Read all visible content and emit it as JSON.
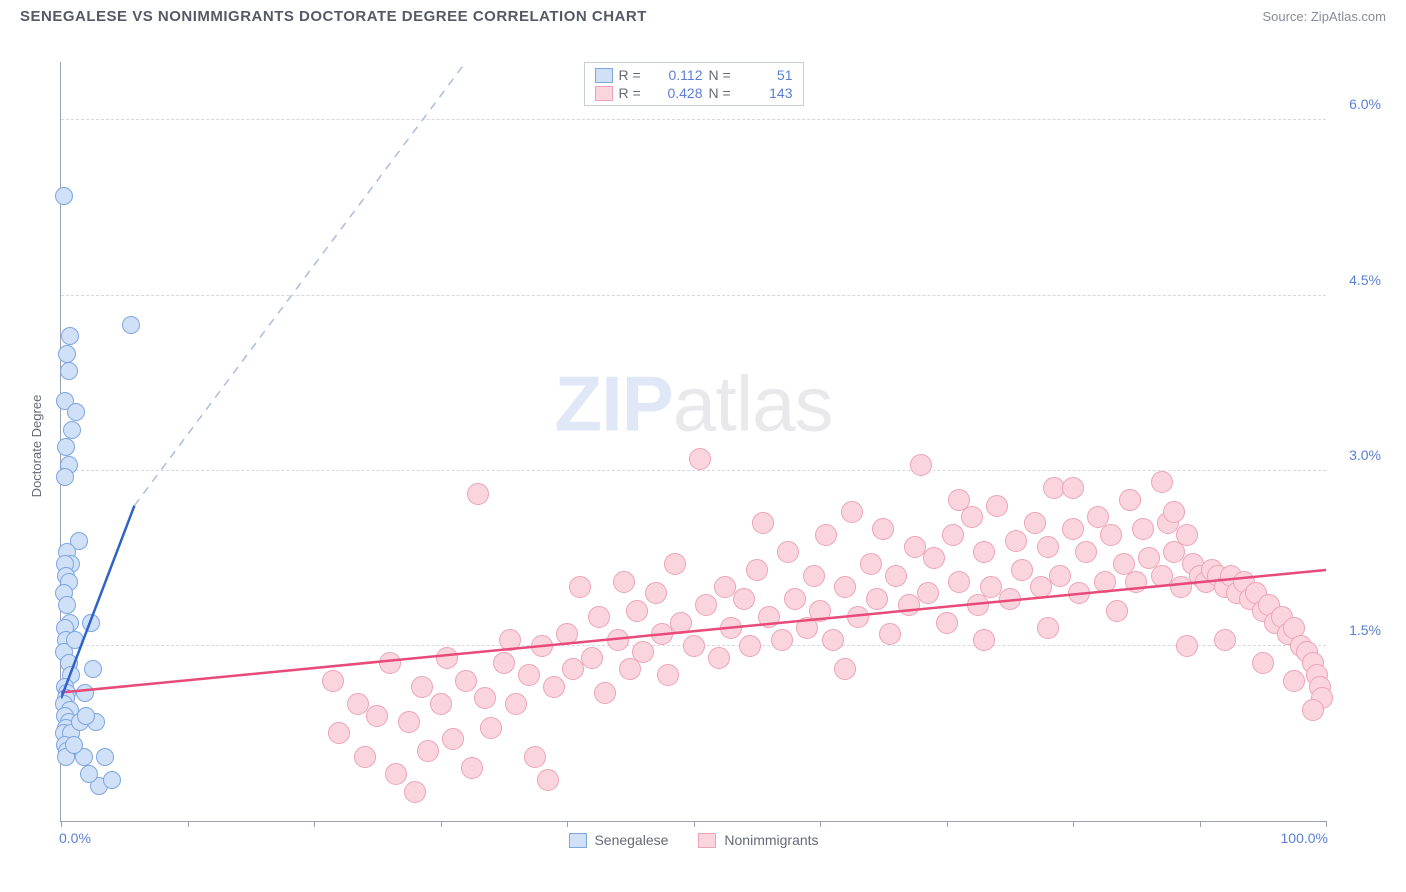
{
  "title": "SENEGALESE VS NONIMMIGRANTS DOCTORATE DEGREE CORRELATION CHART",
  "source_label": "Source: ",
  "source_name": "ZipAtlas.com",
  "watermark_zip": "ZIP",
  "watermark_rest": "atlas",
  "y_axis_title": "Doctorate Degree",
  "chart": {
    "xlim": [
      0,
      100
    ],
    "ylim": [
      0,
      6.5
    ],
    "y_ticks": [
      1.5,
      3.0,
      4.5,
      6.0
    ],
    "y_tick_labels": [
      "1.5%",
      "3.0%",
      "4.5%",
      "6.0%"
    ],
    "x_tick_positions": [
      0,
      10,
      20,
      30,
      40,
      50,
      60,
      70,
      80,
      90,
      100
    ],
    "x_left_label": "0.0%",
    "x_right_label": "100.0%",
    "background_color": "#ffffff",
    "grid_color": "#d5d8e0",
    "axis_color": "#9aa0b0",
    "series": {
      "senegalese": {
        "label": "Senegalese",
        "marker_fill": "#cfe0f7",
        "marker_stroke": "#7da6e3",
        "marker_radius": 9,
        "line_color": "#2f63c9",
        "dash_color": "#a9bde0",
        "r_value": "0.112",
        "n_value": "51",
        "trend_solid": {
          "x1": 0.0,
          "y1": 1.05,
          "x2": 5.8,
          "y2": 2.7
        },
        "trend_dash": {
          "x1": 5.8,
          "y1": 2.7,
          "x2": 32.0,
          "y2": 6.5
        },
        "points": [
          [
            0.2,
            5.35
          ],
          [
            0.5,
            4.0
          ],
          [
            0.6,
            3.85
          ],
          [
            0.7,
            4.15
          ],
          [
            0.3,
            3.6
          ],
          [
            1.2,
            3.5
          ],
          [
            0.9,
            3.35
          ],
          [
            0.4,
            3.2
          ],
          [
            0.6,
            3.05
          ],
          [
            0.3,
            2.95
          ],
          [
            3.0,
            0.3
          ],
          [
            5.5,
            4.25
          ],
          [
            1.4,
            2.4
          ],
          [
            0.5,
            2.3
          ],
          [
            0.8,
            2.2
          ],
          [
            0.3,
            2.2
          ],
          [
            0.4,
            2.1
          ],
          [
            0.6,
            2.05
          ],
          [
            0.2,
            1.95
          ],
          [
            0.5,
            1.85
          ],
          [
            0.7,
            1.7
          ],
          [
            0.3,
            1.65
          ],
          [
            0.4,
            1.55
          ],
          [
            0.2,
            1.45
          ],
          [
            1.1,
            1.55
          ],
          [
            2.4,
            1.7
          ],
          [
            0.6,
            1.35
          ],
          [
            0.8,
            1.25
          ],
          [
            0.3,
            1.15
          ],
          [
            0.5,
            1.1
          ],
          [
            0.4,
            1.05
          ],
          [
            0.2,
            1.0
          ],
          [
            0.7,
            0.95
          ],
          [
            0.3,
            0.9
          ],
          [
            0.6,
            0.85
          ],
          [
            0.4,
            0.8
          ],
          [
            0.2,
            0.75
          ],
          [
            0.8,
            0.75
          ],
          [
            1.5,
            0.85
          ],
          [
            2.8,
            0.85
          ],
          [
            0.3,
            0.65
          ],
          [
            0.5,
            0.6
          ],
          [
            1.9,
            1.1
          ],
          [
            0.4,
            0.55
          ],
          [
            3.5,
            0.55
          ],
          [
            2.2,
            0.4
          ],
          [
            1.8,
            0.55
          ],
          [
            2.5,
            1.3
          ],
          [
            1.0,
            0.65
          ],
          [
            4.0,
            0.35
          ],
          [
            2.0,
            0.9
          ]
        ]
      },
      "nonimmigrants": {
        "label": "Nonimmigrants",
        "marker_fill": "#fbd5de",
        "marker_stroke": "#eda3b6",
        "marker_radius": 11,
        "line_color": "#e84a7a",
        "r_value": "0.428",
        "n_value": "143",
        "trend_solid": {
          "x1": 0.0,
          "y1": 1.1,
          "x2": 100.0,
          "y2": 2.15
        },
        "points": [
          [
            21.5,
            1.2
          ],
          [
            22.0,
            0.75
          ],
          [
            23.5,
            1.0
          ],
          [
            24.0,
            0.55
          ],
          [
            25.0,
            0.9
          ],
          [
            26.0,
            1.35
          ],
          [
            26.5,
            0.4
          ],
          [
            27.5,
            0.85
          ],
          [
            28.0,
            0.25
          ],
          [
            28.5,
            1.15
          ],
          [
            29.0,
            0.6
          ],
          [
            30.0,
            1.0
          ],
          [
            30.5,
            1.4
          ],
          [
            31.0,
            0.7
          ],
          [
            32.0,
            1.2
          ],
          [
            32.5,
            0.45
          ],
          [
            33.0,
            2.8
          ],
          [
            33.5,
            1.05
          ],
          [
            34.0,
            0.8
          ],
          [
            35.0,
            1.35
          ],
          [
            35.5,
            1.55
          ],
          [
            36.0,
            1.0
          ],
          [
            37.0,
            1.25
          ],
          [
            37.5,
            0.55
          ],
          [
            38.0,
            1.5
          ],
          [
            38.5,
            0.35
          ],
          [
            39.0,
            1.15
          ],
          [
            40.0,
            1.6
          ],
          [
            40.5,
            1.3
          ],
          [
            41.0,
            2.0
          ],
          [
            42.0,
            1.4
          ],
          [
            42.5,
            1.75
          ],
          [
            43.0,
            1.1
          ],
          [
            44.0,
            1.55
          ],
          [
            44.5,
            2.05
          ],
          [
            45.0,
            1.3
          ],
          [
            45.5,
            1.8
          ],
          [
            46.0,
            1.45
          ],
          [
            47.0,
            1.95
          ],
          [
            47.5,
            1.6
          ],
          [
            48.0,
            1.25
          ],
          [
            48.5,
            2.2
          ],
          [
            49.0,
            1.7
          ],
          [
            50.0,
            1.5
          ],
          [
            50.5,
            3.1
          ],
          [
            51.0,
            1.85
          ],
          [
            52.0,
            1.4
          ],
          [
            52.5,
            2.0
          ],
          [
            53.0,
            1.65
          ],
          [
            54.0,
            1.9
          ],
          [
            54.5,
            1.5
          ],
          [
            55.0,
            2.15
          ],
          [
            55.5,
            2.55
          ],
          [
            56.0,
            1.75
          ],
          [
            57.0,
            1.55
          ],
          [
            57.5,
            2.3
          ],
          [
            58.0,
            1.9
          ],
          [
            59.0,
            1.65
          ],
          [
            59.5,
            2.1
          ],
          [
            60.0,
            1.8
          ],
          [
            60.5,
            2.45
          ],
          [
            61.0,
            1.55
          ],
          [
            62.0,
            2.0
          ],
          [
            62.5,
            2.65
          ],
          [
            63.0,
            1.75
          ],
          [
            64.0,
            2.2
          ],
          [
            64.5,
            1.9
          ],
          [
            65.0,
            2.5
          ],
          [
            65.5,
            1.6
          ],
          [
            66.0,
            2.1
          ],
          [
            67.0,
            1.85
          ],
          [
            67.5,
            2.35
          ],
          [
            68.0,
            3.05
          ],
          [
            68.5,
            1.95
          ],
          [
            69.0,
            2.25
          ],
          [
            70.0,
            1.7
          ],
          [
            70.5,
            2.45
          ],
          [
            71.0,
            2.05
          ],
          [
            72.0,
            2.6
          ],
          [
            72.5,
            1.85
          ],
          [
            73.0,
            2.3
          ],
          [
            73.5,
            2.0
          ],
          [
            74.0,
            2.7
          ],
          [
            75.0,
            1.9
          ],
          [
            75.5,
            2.4
          ],
          [
            76.0,
            2.15
          ],
          [
            77.0,
            2.55
          ],
          [
            77.5,
            2.0
          ],
          [
            78.0,
            2.35
          ],
          [
            78.5,
            2.85
          ],
          [
            79.0,
            2.1
          ],
          [
            80.0,
            2.5
          ],
          [
            80.5,
            1.95
          ],
          [
            81.0,
            2.3
          ],
          [
            82.0,
            2.6
          ],
          [
            82.5,
            2.05
          ],
          [
            83.0,
            2.45
          ],
          [
            84.0,
            2.2
          ],
          [
            84.5,
            2.75
          ],
          [
            85.0,
            2.05
          ],
          [
            85.5,
            2.5
          ],
          [
            86.0,
            2.25
          ],
          [
            87.0,
            2.1
          ],
          [
            87.5,
            2.55
          ],
          [
            88.0,
            2.3
          ],
          [
            88.5,
            2.0
          ],
          [
            89.0,
            2.45
          ],
          [
            89.5,
            2.2
          ],
          [
            90.0,
            2.1
          ],
          [
            90.5,
            2.05
          ],
          [
            91.0,
            2.15
          ],
          [
            91.5,
            2.1
          ],
          [
            92.0,
            2.0
          ],
          [
            92.5,
            2.1
          ],
          [
            93.0,
            1.95
          ],
          [
            93.5,
            2.05
          ],
          [
            94.0,
            1.9
          ],
          [
            94.5,
            1.95
          ],
          [
            95.0,
            1.8
          ],
          [
            95.5,
            1.85
          ],
          [
            96.0,
            1.7
          ],
          [
            96.5,
            1.75
          ],
          [
            97.0,
            1.6
          ],
          [
            97.5,
            1.65
          ],
          [
            98.0,
            1.5
          ],
          [
            98.5,
            1.45
          ],
          [
            99.0,
            1.35
          ],
          [
            99.3,
            1.25
          ],
          [
            99.5,
            1.15
          ],
          [
            99.7,
            1.05
          ],
          [
            87.0,
            2.9
          ],
          [
            78.0,
            1.65
          ],
          [
            62.0,
            1.3
          ],
          [
            73.0,
            1.55
          ],
          [
            83.5,
            1.8
          ],
          [
            89.0,
            1.5
          ],
          [
            92.0,
            1.55
          ],
          [
            95.0,
            1.35
          ],
          [
            97.5,
            1.2
          ],
          [
            99.0,
            0.95
          ],
          [
            88.0,
            2.65
          ],
          [
            80.0,
            2.85
          ],
          [
            71.0,
            2.75
          ]
        ]
      }
    }
  },
  "legend_top": {
    "r_label": "R =",
    "n_label": "N ="
  }
}
